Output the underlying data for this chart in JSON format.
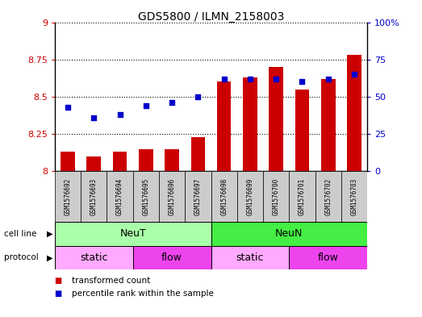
{
  "title": "GDS5800 / ILMN_2158003",
  "samples": [
    "GSM1576692",
    "GSM1576693",
    "GSM1576694",
    "GSM1576695",
    "GSM1576696",
    "GSM1576697",
    "GSM1576698",
    "GSM1576699",
    "GSM1576700",
    "GSM1576701",
    "GSM1576702",
    "GSM1576703"
  ],
  "transformed_count": [
    8.13,
    8.1,
    8.13,
    8.15,
    8.15,
    8.23,
    8.6,
    8.63,
    8.7,
    8.55,
    8.62,
    8.78
  ],
  "percentile_rank": [
    43,
    36,
    38,
    44,
    46,
    50,
    62,
    62,
    62,
    60,
    62,
    65
  ],
  "bar_color": "#cc0000",
  "dot_color": "#0000cc",
  "ylim_left": [
    8.0,
    9.0
  ],
  "ylim_right": [
    0,
    100
  ],
  "yticks_left": [
    8.0,
    8.25,
    8.5,
    8.75,
    9.0
  ],
  "ytick_labels_left": [
    "8",
    "8.25",
    "8.5",
    "8.75",
    "9"
  ],
  "yticks_right": [
    0,
    25,
    50,
    75,
    100
  ],
  "ytick_labels_right": [
    "0",
    "25",
    "50",
    "75",
    "100%"
  ],
  "cell_line_groups": [
    {
      "label": "NeuT",
      "start": 0,
      "end": 6,
      "color": "#aaffaa"
    },
    {
      "label": "NeuN",
      "start": 6,
      "end": 12,
      "color": "#44ee44"
    }
  ],
  "protocol_groups": [
    {
      "label": "static",
      "start": 0,
      "end": 3,
      "color": "#ffaaff"
    },
    {
      "label": "flow",
      "start": 3,
      "end": 6,
      "color": "#ee44ee"
    },
    {
      "label": "static",
      "start": 6,
      "end": 9,
      "color": "#ffaaff"
    },
    {
      "label": "flow",
      "start": 9,
      "end": 12,
      "color": "#ee44ee"
    }
  ],
  "bar_bottom": 8.0,
  "bar_width": 0.55,
  "xlabel_color": "#cc0000",
  "ylabel_right_color": "#0000cc",
  "background_color": "#ffffff",
  "sample_bg_color": "#cccccc",
  "legend_bar_color": "#cc0000",
  "legend_dot_color": "#0000cc"
}
